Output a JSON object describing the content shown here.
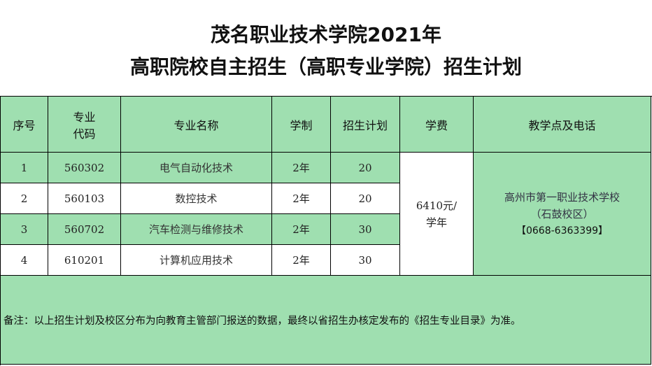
{
  "title_line1": "茂名职业技术学院2021年",
  "title_line2": "高职院校自主招生（高职专业学院）招生计划",
  "headers": {
    "no": "序号",
    "code": "专业\n代码",
    "name": "专业名称",
    "years": "学制",
    "plan": "招生计划",
    "fee": "学费",
    "site": "教学点及电话"
  },
  "rows": [
    {
      "no": "1",
      "code": "560302",
      "name": "电气自动化技术",
      "years": "2年",
      "plan": "20"
    },
    {
      "no": "2",
      "code": "560103",
      "name": "数控技术",
      "years": "2年",
      "plan": "20"
    },
    {
      "no": "3",
      "code": "560702",
      "name": "汽车检测与维修技术",
      "years": "2年",
      "plan": "30"
    },
    {
      "no": "4",
      "code": "610201",
      "name": "计算机应用技术",
      "years": "2年",
      "plan": "30"
    }
  ],
  "fee": "6410元/\n学年",
  "site": {
    "school": "高州市第一职业技术学校",
    "campus": "（石鼓校区）",
    "phone": "【0668-6363399】"
  },
  "note": "备注：以上招生计划及校区分布为向教育主管部门报送的数据，最终以省招生办核定发布的《招生专业目录》为准。",
  "colors": {
    "green": "#9fdfb0"
  }
}
